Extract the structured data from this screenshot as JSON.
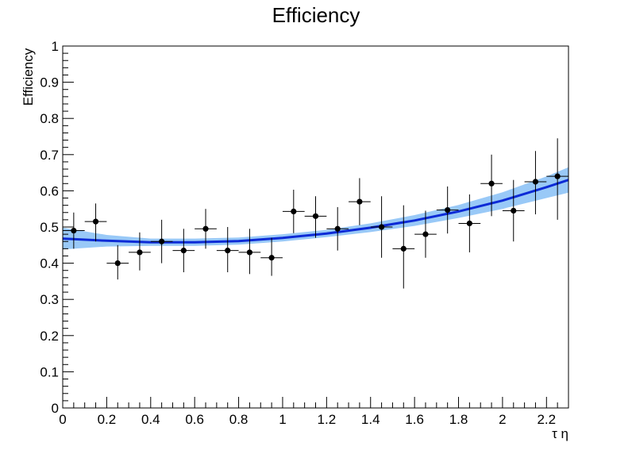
{
  "chart_data": {
    "type": "scatter",
    "title": "Efficiency",
    "xlabel": "τ η",
    "ylabel": "Efficiency",
    "xlim": [
      0,
      2.3
    ],
    "ylim": [
      0,
      1
    ],
    "grid": false,
    "x_ticks": [
      0,
      0.2,
      0.4,
      0.6,
      0.8,
      1,
      1.2,
      1.4,
      1.6,
      1.8,
      2,
      2.2
    ],
    "x_tick_labels": [
      "0",
      "0.2",
      "0.4",
      "0.6",
      "0.8",
      "1",
      "1.2",
      "1.4",
      "1.6",
      "1.8",
      "2",
      "2.2"
    ],
    "y_ticks": [
      0,
      0.1,
      0.2,
      0.3,
      0.4,
      0.5,
      0.6,
      0.7,
      0.8,
      0.9,
      1
    ],
    "y_tick_labels": [
      "0",
      "0.1",
      "0.2",
      "0.3",
      "0.4",
      "0.5",
      "0.6",
      "0.7",
      "0.8",
      "0.9",
      "1"
    ],
    "series": [
      {
        "kind": "points_with_errors",
        "color": "#000000",
        "points": [
          {
            "x": 0.05,
            "y": 0.49,
            "xerr": 0.05,
            "yerr_low": 0.05,
            "yerr_high": 0.05
          },
          {
            "x": 0.15,
            "y": 0.515,
            "xerr": 0.05,
            "yerr_low": 0.055,
            "yerr_high": 0.05
          },
          {
            "x": 0.25,
            "y": 0.4,
            "xerr": 0.05,
            "yerr_low": 0.045,
            "yerr_high": 0.05
          },
          {
            "x": 0.35,
            "y": 0.43,
            "xerr": 0.05,
            "yerr_low": 0.05,
            "yerr_high": 0.055
          },
          {
            "x": 0.45,
            "y": 0.46,
            "xerr": 0.05,
            "yerr_low": 0.06,
            "yerr_high": 0.06
          },
          {
            "x": 0.55,
            "y": 0.435,
            "xerr": 0.05,
            "yerr_low": 0.06,
            "yerr_high": 0.06
          },
          {
            "x": 0.65,
            "y": 0.495,
            "xerr": 0.05,
            "yerr_low": 0.055,
            "yerr_high": 0.055
          },
          {
            "x": 0.75,
            "y": 0.435,
            "xerr": 0.05,
            "yerr_low": 0.06,
            "yerr_high": 0.065
          },
          {
            "x": 0.85,
            "y": 0.43,
            "xerr": 0.05,
            "yerr_low": 0.06,
            "yerr_high": 0.065
          },
          {
            "x": 0.95,
            "y": 0.415,
            "xerr": 0.05,
            "yerr_low": 0.05,
            "yerr_high": 0.055
          },
          {
            "x": 1.05,
            "y": 0.543,
            "xerr": 0.05,
            "yerr_low": 0.06,
            "yerr_high": 0.06
          },
          {
            "x": 1.15,
            "y": 0.53,
            "xerr": 0.05,
            "yerr_low": 0.06,
            "yerr_high": 0.055
          },
          {
            "x": 1.25,
            "y": 0.495,
            "xerr": 0.05,
            "yerr_low": 0.06,
            "yerr_high": 0.06
          },
          {
            "x": 1.35,
            "y": 0.57,
            "xerr": 0.05,
            "yerr_low": 0.065,
            "yerr_high": 0.065
          },
          {
            "x": 1.45,
            "y": 0.5,
            "xerr": 0.05,
            "yerr_low": 0.085,
            "yerr_high": 0.085
          },
          {
            "x": 1.55,
            "y": 0.44,
            "xerr": 0.05,
            "yerr_low": 0.11,
            "yerr_high": 0.12
          },
          {
            "x": 1.65,
            "y": 0.48,
            "xerr": 0.05,
            "yerr_low": 0.065,
            "yerr_high": 0.065
          },
          {
            "x": 1.75,
            "y": 0.547,
            "xerr": 0.05,
            "yerr_low": 0.065,
            "yerr_high": 0.065
          },
          {
            "x": 1.85,
            "y": 0.51,
            "xerr": 0.05,
            "yerr_low": 0.08,
            "yerr_high": 0.08
          },
          {
            "x": 1.95,
            "y": 0.62,
            "xerr": 0.05,
            "yerr_low": 0.09,
            "yerr_high": 0.08
          },
          {
            "x": 2.05,
            "y": 0.545,
            "xerr": 0.05,
            "yerr_low": 0.085,
            "yerr_high": 0.085
          },
          {
            "x": 2.15,
            "y": 0.625,
            "xerr": 0.05,
            "yerr_low": 0.09,
            "yerr_high": 0.085
          },
          {
            "x": 2.25,
            "y": 0.64,
            "xerr": 0.05,
            "yerr_low": 0.12,
            "yerr_high": 0.105
          }
        ]
      },
      {
        "kind": "fit_curve",
        "color": "#0d2bd6",
        "x": [
          0,
          0.2,
          0.4,
          0.6,
          0.8,
          1.0,
          1.2,
          1.4,
          1.6,
          1.8,
          2.0,
          2.2,
          2.3
        ],
        "y": [
          0.468,
          0.462,
          0.458,
          0.458,
          0.461,
          0.47,
          0.482,
          0.498,
          0.518,
          0.543,
          0.573,
          0.61,
          0.63
        ],
        "band_color": "#99c9f7",
        "band_low": [
          0.438,
          0.446,
          0.448,
          0.448,
          0.451,
          0.46,
          0.472,
          0.486,
          0.503,
          0.525,
          0.55,
          0.58,
          0.595
        ],
        "band_high": [
          0.498,
          0.478,
          0.468,
          0.468,
          0.471,
          0.48,
          0.492,
          0.51,
          0.533,
          0.561,
          0.596,
          0.64,
          0.665
        ]
      }
    ]
  }
}
